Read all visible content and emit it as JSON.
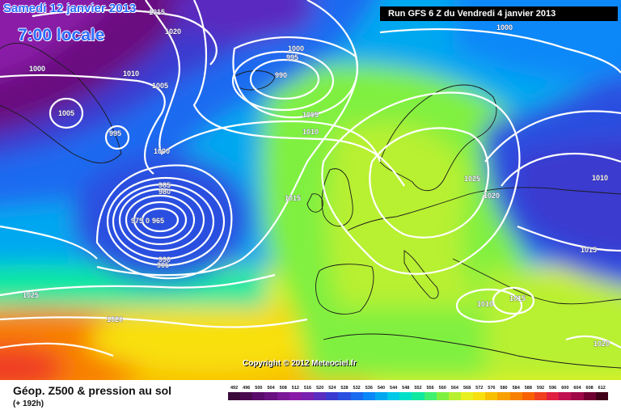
{
  "header": {
    "date": "Samedi 12 janvier 2013",
    "time": "7:00 locale",
    "run": "Run GFS 6 Z du Vendredi 4 janvier 2013",
    "copyright": "Copyright © 2012 Meteociel.fr"
  },
  "footer": {
    "title": "Géop. Z500 & pression au sol",
    "subtitle": "(+ 192h)",
    "scale_labels": [
      "492",
      "496",
      "500",
      "504",
      "508",
      "512",
      "516",
      "520",
      "524",
      "528",
      "532",
      "536",
      "540",
      "544",
      "548",
      "552",
      "556",
      "560",
      "564",
      "568",
      "572",
      "576",
      "580",
      "584",
      "588",
      "592",
      "596",
      "600",
      "604",
      "608",
      "612"
    ],
    "scale_colors": [
      "#3a0a3a",
      "#4a0a50",
      "#5a0a6a",
      "#6a1080",
      "#7a1898",
      "#8a1aa8",
      "#7a20b0",
      "#5a2cc0",
      "#3a3ad0",
      "#2a50e0",
      "#1a6af0",
      "#0a88f8",
      "#00a8f0",
      "#00c8e8",
      "#00e0c8",
      "#10e8a0",
      "#40f070",
      "#80f040",
      "#b8f030",
      "#e8f020",
      "#f8e010",
      "#f8c000",
      "#f8a000",
      "#f88000",
      "#f86000",
      "#f04020",
      "#e02040",
      "#c01050",
      "#a00848",
      "#700030",
      "#400018"
    ]
  },
  "isobars": [
    {
      "label": "1015",
      "pos": "top-left"
    },
    {
      "label": "1020",
      "pos": "top-left"
    },
    {
      "label": "1000",
      "pos": "top-left"
    },
    {
      "label": "1010",
      "pos": "top-left"
    },
    {
      "label": "1005",
      "pos": "top-left"
    },
    {
      "label": "1005",
      "pos": "left"
    },
    {
      "label": "995",
      "pos": "left"
    },
    {
      "label": "1000",
      "pos": "center-left"
    },
    {
      "label": "1000",
      "pos": "top-center"
    },
    {
      "label": "995",
      "pos": "top-center"
    },
    {
      "label": "990",
      "pos": "top-center"
    },
    {
      "label": "1005",
      "pos": "center"
    },
    {
      "label": "1010",
      "pos": "center"
    },
    {
      "label": "1015",
      "pos": "center"
    },
    {
      "label": "985",
      "pos": "low-center"
    },
    {
      "label": "980",
      "pos": "low-center"
    },
    {
      "label": "975",
      "pos": "low-center"
    },
    {
      "label": "0",
      "pos": "low-center"
    },
    {
      "label": "965",
      "pos": "low-center"
    },
    {
      "label": "990",
      "pos": "low-center"
    },
    {
      "label": "995",
      "pos": "low-center"
    },
    {
      "label": "1025",
      "pos": "bottom-left"
    },
    {
      "label": "1020",
      "pos": "bottom-left"
    },
    {
      "label": "1025",
      "pos": "europe"
    },
    {
      "label": "1020",
      "pos": "east"
    },
    {
      "label": "1010",
      "pos": "east"
    },
    {
      "label": "1015",
      "pos": "east"
    },
    {
      "label": "1010",
      "pos": "balkans"
    },
    {
      "label": "1015",
      "pos": "balkans"
    },
    {
      "label": "1000",
      "pos": "top-right"
    },
    {
      "label": "1020",
      "pos": "bottom-right"
    }
  ]
}
